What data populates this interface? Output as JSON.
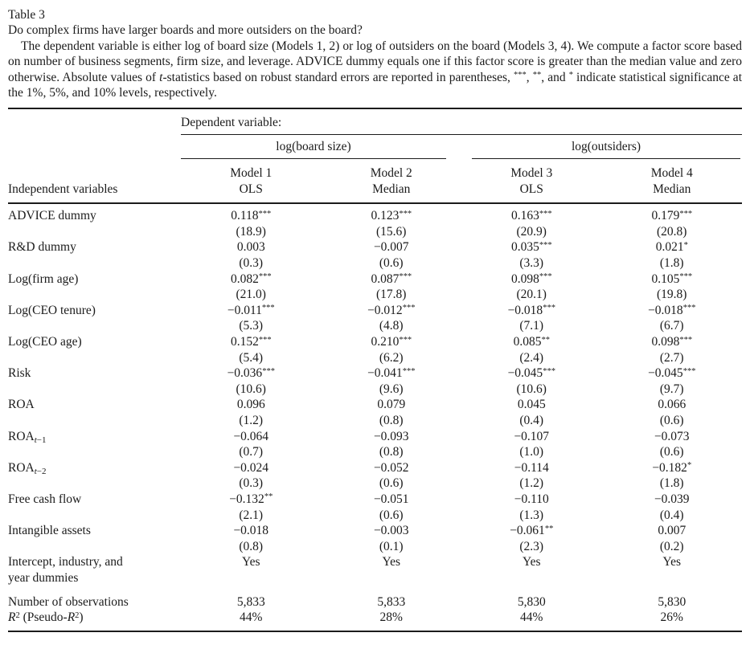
{
  "caption": {
    "table_number": "Table 3",
    "title": "Do complex firms have larger boards and more outsiders on the board?",
    "note": [
      {
        "t": "The dependent variable is either log of board size (Models 1, 2) or log of outsiders on the board (Models 3, 4). We compute a factor score based on number of business segments, firm size, and leverage. ADVICE dummy equals one if this factor score is greater than the median value and zero otherwise. Absolute values of "
      },
      {
        "t": "t",
        "s": "i"
      },
      {
        "t": "-statistics based on robust standard errors are reported in parentheses, "
      },
      {
        "t": "***",
        "s": "sup"
      },
      {
        "t": ", "
      },
      {
        "t": "**",
        "s": "sup"
      },
      {
        "t": ", and "
      },
      {
        "t": "*",
        "s": "sup"
      },
      {
        "t": " indicate statistical significance at the 1%, 5%, and 10% levels, respectively."
      }
    ]
  },
  "table": {
    "dependent_label": "Dependent variable:",
    "stub_header": "Independent variables",
    "col_groups": [
      {
        "label": "log(board size)"
      },
      {
        "label": "log(outsiders)"
      }
    ],
    "model_headers": [
      {
        "name": "Model 1",
        "method": "OLS"
      },
      {
        "name": "Model 2",
        "method": "Median"
      },
      {
        "name": "Model 3",
        "method": "OLS"
      },
      {
        "name": "Model 4",
        "method": "Median"
      }
    ],
    "rows": [
      {
        "label": [
          {
            "t": "ADVICE dummy"
          }
        ],
        "coef": [
          {
            "v": "0.118",
            "s": "***"
          },
          {
            "v": "0.123",
            "s": "***"
          },
          {
            "v": "0.163",
            "s": "***"
          },
          {
            "v": "0.179",
            "s": "***"
          }
        ],
        "tstat": [
          "(18.9)",
          "(15.6)",
          "(20.9)",
          "(20.8)"
        ]
      },
      {
        "label": [
          {
            "t": "R&D dummy"
          }
        ],
        "coef": [
          {
            "v": "0.003"
          },
          {
            "v": "−0.007"
          },
          {
            "v": "0.035",
            "s": "***"
          },
          {
            "v": "0.021",
            "s": "*"
          }
        ],
        "tstat": [
          "(0.3)",
          "(0.6)",
          "(3.3)",
          "(1.8)"
        ]
      },
      {
        "label": [
          {
            "t": "Log(firm age)"
          }
        ],
        "coef": [
          {
            "v": "0.082",
            "s": "***"
          },
          {
            "v": "0.087",
            "s": "***"
          },
          {
            "v": "0.098",
            "s": "***"
          },
          {
            "v": "0.105",
            "s": "***"
          }
        ],
        "tstat": [
          "(21.0)",
          "(17.8)",
          "(20.1)",
          "(19.8)"
        ]
      },
      {
        "label": [
          {
            "t": "Log(CEO tenure)"
          }
        ],
        "coef": [
          {
            "v": "−0.011",
            "s": "***"
          },
          {
            "v": "−0.012",
            "s": "***"
          },
          {
            "v": "−0.018",
            "s": "***"
          },
          {
            "v": "−0.018",
            "s": "***"
          }
        ],
        "tstat": [
          "(5.3)",
          "(4.8)",
          "(7.1)",
          "(6.7)"
        ]
      },
      {
        "label": [
          {
            "t": "Log(CEO age)"
          }
        ],
        "coef": [
          {
            "v": "0.152",
            "s": "***"
          },
          {
            "v": "0.210",
            "s": "***"
          },
          {
            "v": "0.085",
            "s": "**"
          },
          {
            "v": "0.098",
            "s": "***"
          }
        ],
        "tstat": [
          "(5.4)",
          "(6.2)",
          "(2.4)",
          "(2.7)"
        ]
      },
      {
        "label": [
          {
            "t": "Risk"
          }
        ],
        "coef": [
          {
            "v": "−0.036",
            "s": "***"
          },
          {
            "v": "−0.041",
            "s": "***"
          },
          {
            "v": "−0.045",
            "s": "***"
          },
          {
            "v": "−0.045",
            "s": "***"
          }
        ],
        "tstat": [
          "(10.6)",
          "(9.6)",
          "(10.6)",
          "(9.7)"
        ]
      },
      {
        "label": [
          {
            "t": "ROA"
          }
        ],
        "coef": [
          {
            "v": "0.096"
          },
          {
            "v": "0.079"
          },
          {
            "v": "0.045"
          },
          {
            "v": "0.066"
          }
        ],
        "tstat": [
          "(1.2)",
          "(0.8)",
          "(0.4)",
          "(0.6)"
        ]
      },
      {
        "label": [
          {
            "t": "ROA"
          },
          {
            "t": "t",
            "s": "subi"
          },
          {
            "t": "−1",
            "s": "sub"
          }
        ],
        "coef": [
          {
            "v": "−0.064"
          },
          {
            "v": "−0.093"
          },
          {
            "v": "−0.107"
          },
          {
            "v": "−0.073"
          }
        ],
        "tstat": [
          "(0.7)",
          "(0.8)",
          "(1.0)",
          "(0.6)"
        ]
      },
      {
        "label": [
          {
            "t": "ROA"
          },
          {
            "t": "t",
            "s": "subi"
          },
          {
            "t": "−2",
            "s": "sub"
          }
        ],
        "coef": [
          {
            "v": "−0.024"
          },
          {
            "v": "−0.052"
          },
          {
            "v": "−0.114"
          },
          {
            "v": "−0.182",
            "s": "*"
          }
        ],
        "tstat": [
          "(0.3)",
          "(0.6)",
          "(1.2)",
          "(1.8)"
        ]
      },
      {
        "label": [
          {
            "t": "Free cash flow"
          }
        ],
        "coef": [
          {
            "v": "−0.132",
            "s": "**"
          },
          {
            "v": "−0.051"
          },
          {
            "v": "−0.110"
          },
          {
            "v": "−0.039"
          }
        ],
        "tstat": [
          "(2.1)",
          "(0.6)",
          "(1.3)",
          "(0.4)"
        ]
      },
      {
        "label": [
          {
            "t": "Intangible assets"
          }
        ],
        "coef": [
          {
            "v": "−0.018"
          },
          {
            "v": "−0.003"
          },
          {
            "v": "−0.061",
            "s": "**"
          },
          {
            "v": "0.007"
          }
        ],
        "tstat": [
          "(0.8)",
          "(0.1)",
          "(2.3)",
          "(0.2)"
        ]
      },
      {
        "label": [
          {
            "t": "Intercept, industry, and"
          },
          {
            "br": true
          },
          {
            "t": "year dummies"
          }
        ],
        "coef": [
          {
            "v": "Yes"
          },
          {
            "v": "Yes"
          },
          {
            "v": "Yes"
          },
          {
            "v": "Yes"
          }
        ],
        "tstat": null
      }
    ],
    "bottom_rows": [
      {
        "label": [
          {
            "t": "Number of observations"
          }
        ],
        "values": [
          "5,833",
          "5,833",
          "5,830",
          "5,830"
        ]
      },
      {
        "label": [
          {
            "t": "R",
            "s": "i"
          },
          {
            "t": "2",
            "s": "sup"
          },
          {
            "t": " (Pseudo-"
          },
          {
            "t": "R",
            "s": "i"
          },
          {
            "t": "2",
            "s": "sup"
          },
          {
            "t": ")"
          }
        ],
        "values": [
          "44%",
          "28%",
          "44%",
          "26%"
        ]
      }
    ]
  },
  "colors": {
    "ink": "#1b1b1b",
    "paper": "#ffffff"
  }
}
